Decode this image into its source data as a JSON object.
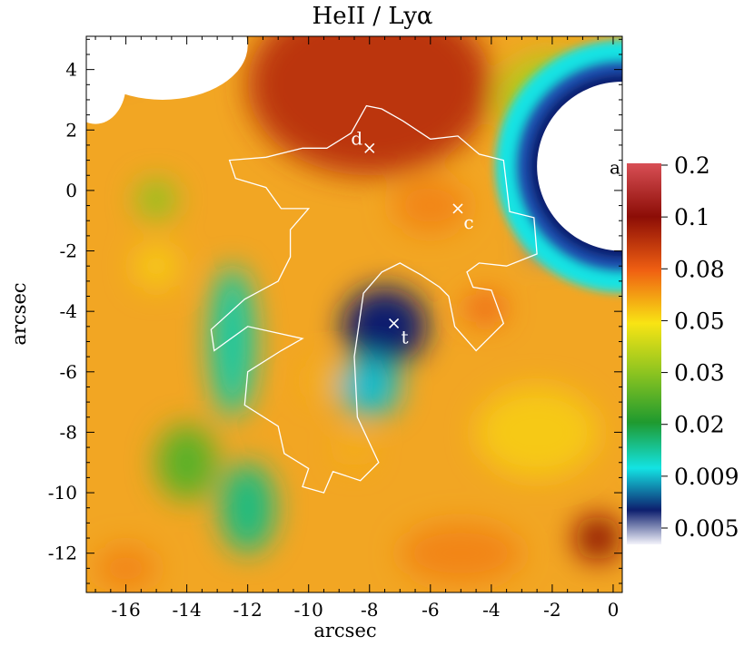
{
  "chart_data": {
    "type": "heatmap",
    "title": "HeII / Lyα",
    "xlabel": "arcsec",
    "ylabel": "arcsec",
    "xlim": [
      -17.3,
      0.3
    ],
    "ylim": [
      -13.3,
      5.1
    ],
    "x_ticks": [
      -16,
      -14,
      -12,
      -10,
      -8,
      -6,
      -4,
      -2,
      0
    ],
    "y_ticks": [
      4,
      2,
      0,
      -2,
      -4,
      -6,
      -8,
      -10,
      -12
    ],
    "colorbar": {
      "scale": "log",
      "tick_labels": [
        "0.2",
        "0.1",
        "0.08",
        "0.05",
        "0.03",
        "0.02",
        "0.009",
        "0.005"
      ],
      "colors": [
        "#d84f55",
        "#8c0d06",
        "#ef5f12",
        "#f8e414",
        "#8cc420",
        "#1f9a2f",
        "#13e3e3",
        "#0d1f6e",
        "#f3f3fb"
      ]
    },
    "blobs": [
      {
        "x": -8.0,
        "y": 3.5,
        "w": 8.0,
        "h": 6.0,
        "value": 0.09
      },
      {
        "x": -2.0,
        "y": 3.0,
        "w": 3.5,
        "h": 3.0,
        "value": 0.035
      },
      {
        "x": -6.0,
        "y": -0.5,
        "w": 2.5,
        "h": 1.8,
        "value": 0.07
      },
      {
        "x": -4.2,
        "y": -3.9,
        "w": 1.3,
        "h": 1.0,
        "value": 0.08
      },
      {
        "x": -9.5,
        "y": -6.3,
        "w": 1.2,
        "h": 1.2,
        "value": 0.06
      },
      {
        "x": -8.5,
        "y": -8.5,
        "w": 1.0,
        "h": 1.2,
        "value": 0.06
      },
      {
        "x": -15.0,
        "y": -0.3,
        "w": 1.3,
        "h": 1.3,
        "value": 0.03
      },
      {
        "x": -15.0,
        "y": -2.5,
        "w": 1.5,
        "h": 1.5,
        "value": 0.055
      },
      {
        "x": -12.5,
        "y": -5.0,
        "w": 1.5,
        "h": 5.0,
        "value": 0.012
      },
      {
        "x": -12.0,
        "y": -10.5,
        "w": 1.8,
        "h": 3.0,
        "value": 0.014
      },
      {
        "x": -14.0,
        "y": -9.0,
        "w": 2.0,
        "h": 2.5,
        "value": 0.025
      },
      {
        "x": -7.5,
        "y": -4.5,
        "w": 2.8,
        "h": 2.6,
        "value": 0.005
      },
      {
        "x": -8.0,
        "y": -6.5,
        "w": 2.0,
        "h": 2.0,
        "value": 0.008
      },
      {
        "x": -2.3,
        "y": -1.8,
        "w": 0.9,
        "h": 0.9,
        "value": 0.004
      },
      {
        "x": -2.5,
        "y": -8.0,
        "w": 4.0,
        "h": 3.0,
        "value": 0.055
      },
      {
        "x": -5.0,
        "y": -12.0,
        "w": 4.0,
        "h": 2.0,
        "value": 0.07
      },
      {
        "x": -0.5,
        "y": -11.5,
        "w": 1.5,
        "h": 1.5,
        "value": 0.1
      },
      {
        "x": -16.5,
        "y": 4.5,
        "w": 1.8,
        "h": 1.3,
        "value": 0.12
      },
      {
        "x": -16.0,
        "y": -12.5,
        "w": 2.0,
        "h": 1.5,
        "value": 0.07
      }
    ],
    "white_regions": [
      {
        "x": -14.8,
        "y": 4.8,
        "rx": 2.8,
        "ry": 1.8
      },
      {
        "x": -17.0,
        "y": 3.5,
        "rx": 1.0,
        "ry": 1.3
      }
    ],
    "hole": {
      "x": 0.3,
      "y": 0.8,
      "rx": 2.8,
      "ry": 2.8,
      "label": "a"
    },
    "markers": [
      {
        "label": "d",
        "x": -8.0,
        "y": 1.4,
        "color": "#ffffff"
      },
      {
        "label": "c",
        "x": -5.1,
        "y": -0.6,
        "color": "#ffffff"
      },
      {
        "label": "t",
        "x": -7.2,
        "y": -4.4,
        "color": "#ffffff"
      }
    ],
    "contour": [
      [
        -9.4,
        1.4
      ],
      [
        -8.6,
        1.9
      ],
      [
        -8.1,
        2.8
      ],
      [
        -7.6,
        2.7
      ],
      [
        -6.9,
        2.3
      ],
      [
        -6.0,
        1.7
      ],
      [
        -5.1,
        1.8
      ],
      [
        -4.4,
        1.2
      ],
      [
        -3.6,
        1.0
      ],
      [
        -3.4,
        -0.7
      ],
      [
        -2.6,
        -0.9
      ],
      [
        -2.5,
        -2.1
      ],
      [
        -3.5,
        -2.5
      ],
      [
        -4.4,
        -2.4
      ],
      [
        -4.8,
        -2.7
      ],
      [
        -4.6,
        -3.2
      ],
      [
        -4.0,
        -3.3
      ],
      [
        -3.6,
        -4.4
      ],
      [
        -4.1,
        -4.9
      ],
      [
        -4.5,
        -5.3
      ],
      [
        -5.2,
        -4.5
      ],
      [
        -5.4,
        -3.5
      ],
      [
        -5.7,
        -3.2
      ],
      [
        -6.3,
        -2.8
      ],
      [
        -7.0,
        -2.4
      ],
      [
        -7.6,
        -2.7
      ],
      [
        -8.2,
        -3.4
      ],
      [
        -8.5,
        -5.5
      ],
      [
        -8.4,
        -7.5
      ],
      [
        -7.7,
        -9.0
      ],
      [
        -8.3,
        -9.6
      ],
      [
        -9.2,
        -9.3
      ],
      [
        -9.5,
        -10.0
      ],
      [
        -10.2,
        -9.8
      ],
      [
        -10.0,
        -9.2
      ],
      [
        -10.8,
        -8.7
      ],
      [
        -11.0,
        -7.8
      ],
      [
        -12.1,
        -7.1
      ],
      [
        -12.0,
        -6.0
      ],
      [
        -10.9,
        -5.3
      ],
      [
        -10.2,
        -4.9
      ],
      [
        -12.0,
        -4.5
      ],
      [
        -13.1,
        -5.3
      ],
      [
        -13.2,
        -4.6
      ],
      [
        -12.1,
        -3.6
      ],
      [
        -11.0,
        -3.0
      ],
      [
        -10.6,
        -2.2
      ],
      [
        -10.6,
        -1.3
      ],
      [
        -10.0,
        -0.6
      ],
      [
        -10.9,
        -0.6
      ],
      [
        -11.4,
        0.1
      ],
      [
        -12.4,
        0.4
      ],
      [
        -12.6,
        1.0
      ],
      [
        -11.4,
        1.1
      ],
      [
        -10.2,
        1.4
      ]
    ]
  }
}
